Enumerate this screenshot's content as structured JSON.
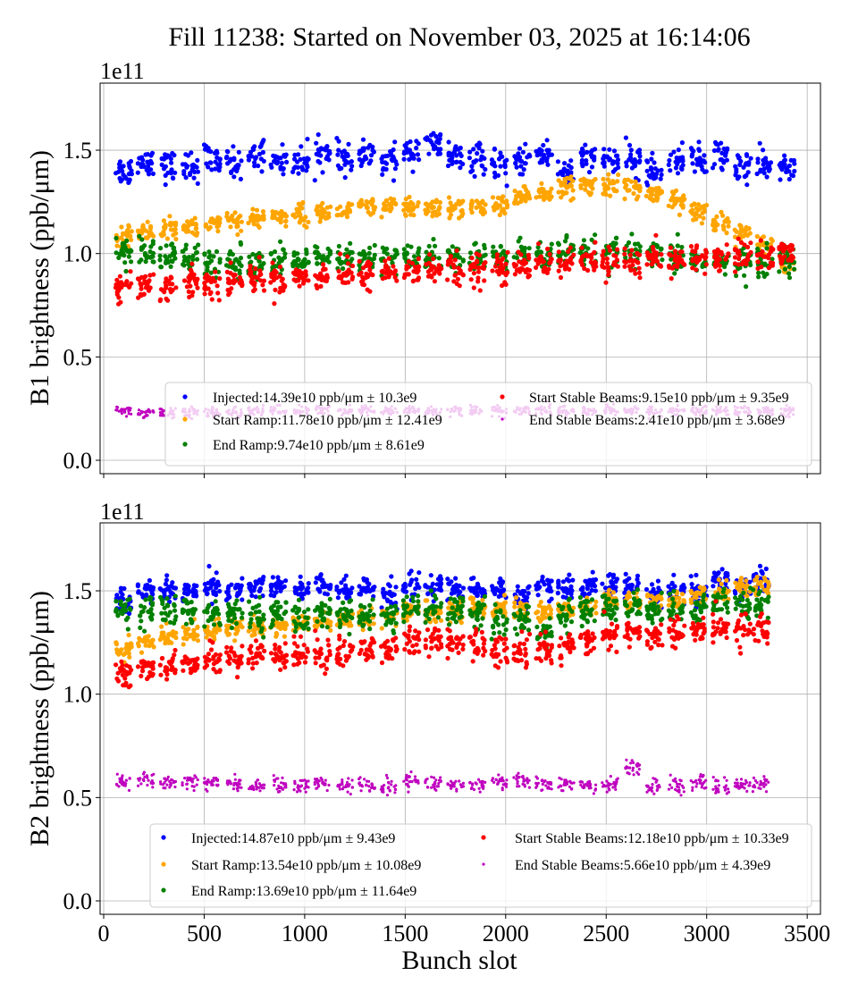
{
  "chart_data": {
    "title": "Fill 11238: Started on November 03, 2025 at 16:14:06",
    "xlabel": "Bunch slot",
    "xlim": [
      -20,
      3550
    ],
    "xticks": [
      0,
      500,
      1000,
      1500,
      2000,
      2500,
      3000,
      3500
    ],
    "grid": true,
    "panels": [
      {
        "type": "scatter",
        "ylabel": "B1 brightness (ppb/μm)",
        "offset_text": "1e11",
        "ylim": [
          -0.05,
          1.82
        ],
        "yticks": [
          "0.0",
          "0.5",
          "1.0",
          "1.5"
        ],
        "show_xticklabels": false,
        "legend_placement": "lower-right",
        "train_start_slots": [
          60,
          170,
          280,
          390,
          500,
          610,
          720,
          830,
          940,
          1050,
          1160,
          1270,
          1380,
          1490,
          1600,
          1710,
          1820,
          1930,
          2040,
          2150,
          2260,
          2370,
          2480,
          2590,
          2700,
          2810,
          2920,
          3030,
          3140,
          3250,
          3360
        ],
        "series": [
          {
            "name": "Injected:14.39e10 ppb/μm ± 10.3e9",
            "color": "#0000ff",
            "spread": 0.06,
            "y": [
              1.4,
              1.45,
              1.42,
              1.42,
              1.45,
              1.44,
              1.48,
              1.45,
              1.45,
              1.48,
              1.46,
              1.47,
              1.44,
              1.5,
              1.52,
              1.46,
              1.46,
              1.42,
              1.45,
              1.48,
              1.4,
              1.45,
              1.45,
              1.45,
              1.4,
              1.45,
              1.45,
              1.48,
              1.42,
              1.42,
              1.42
            ]
          },
          {
            "name": "Start Ramp:11.78e10 ppb/μm ± 12.41e9",
            "color": "#ffa500",
            "spread": 0.04,
            "y": [
              1.08,
              1.1,
              1.12,
              1.13,
              1.15,
              1.16,
              1.17,
              1.18,
              1.19,
              1.2,
              1.21,
              1.22,
              1.22,
              1.22,
              1.22,
              1.22,
              1.22,
              1.23,
              1.27,
              1.3,
              1.32,
              1.33,
              1.33,
              1.32,
              1.28,
              1.25,
              1.2,
              1.15,
              1.1,
              1.04,
              0.96
            ]
          },
          {
            "name": "End Ramp:9.74e10 ppb/μm ± 8.61e9",
            "color": "#008000",
            "spread": 0.06,
            "y": [
              1.02,
              1.0,
              0.98,
              0.97,
              0.96,
              0.96,
              0.96,
              0.96,
              0.96,
              0.97,
              0.97,
              0.97,
              0.98,
              0.98,
              0.98,
              0.98,
              0.98,
              0.98,
              1.0,
              1.0,
              1.0,
              1.0,
              1.0,
              1.0,
              0.98,
              0.98,
              0.97,
              0.96,
              0.96,
              0.96,
              0.97
            ]
          },
          {
            "name": "Start Stable Beams:9.15e10 ppb/μm ± 9.35e9",
            "color": "#ff0000",
            "spread": 0.06,
            "y": [
              0.85,
              0.85,
              0.84,
              0.86,
              0.87,
              0.87,
              0.88,
              0.88,
              0.89,
              0.9,
              0.9,
              0.9,
              0.91,
              0.92,
              0.92,
              0.92,
              0.93,
              0.93,
              0.95,
              0.96,
              0.96,
              0.96,
              0.96,
              0.96,
              0.96,
              0.97,
              0.98,
              0.98,
              0.99,
              0.99,
              1.0
            ]
          },
          {
            "name": "End Stable Beams:2.41e10 ppb/μm ± 3.68e9",
            "color": "#bf00bf",
            "spread": 0.02,
            "small": true,
            "y": [
              0.24,
              0.23,
              0.23,
              0.23,
              0.23,
              0.23,
              0.24,
              0.24,
              0.24,
              0.24,
              0.24,
              0.24,
              0.24,
              0.24,
              0.24,
              0.24,
              0.24,
              0.24,
              0.24,
              0.24,
              0.24,
              0.24,
              0.24,
              0.24,
              0.24,
              0.24,
              0.24,
              0.24,
              0.24,
              0.24,
              0.24
            ]
          }
        ]
      },
      {
        "type": "scatter",
        "ylabel": "B2 brightness (ppb/μm)",
        "offset_text": "1e11",
        "ylim": [
          -0.05,
          1.83
        ],
        "yticks": [
          "0.0",
          "0.5",
          "1.0",
          "1.5"
        ],
        "xticklabels": [
          "0",
          "500",
          "1000",
          "1500",
          "2000",
          "2500",
          "3000",
          "3500"
        ],
        "show_xticklabels": true,
        "legend_placement": "lower-right",
        "train_start_slots": [
          60,
          170,
          280,
          390,
          500,
          610,
          720,
          830,
          940,
          1050,
          1160,
          1270,
          1380,
          1490,
          1600,
          1710,
          1820,
          1930,
          2040,
          2150,
          2260,
          2370,
          2480,
          2590,
          2700,
          2810,
          2920,
          3030,
          3140,
          3230
        ],
        "series": [
          {
            "name": "Injected:14.87e10 ppb/μm ± 9.43e9",
            "color": "#0000ff",
            "spread": 0.05,
            "y": [
              1.45,
              1.5,
              1.5,
              1.5,
              1.52,
              1.5,
              1.52,
              1.52,
              1.5,
              1.52,
              1.5,
              1.52,
              1.48,
              1.52,
              1.52,
              1.5,
              1.5,
              1.5,
              1.48,
              1.52,
              1.5,
              1.52,
              1.52,
              1.52,
              1.48,
              1.5,
              1.5,
              1.55,
              1.52,
              1.55
            ]
          },
          {
            "name": "Start Ramp:13.54e10 ppb/μm ± 10.08e9",
            "color": "#ffa500",
            "spread": 0.04,
            "y": [
              1.22,
              1.25,
              1.28,
              1.3,
              1.3,
              1.32,
              1.33,
              1.33,
              1.34,
              1.35,
              1.36,
              1.37,
              1.38,
              1.4,
              1.4,
              1.4,
              1.42,
              1.42,
              1.4,
              1.4,
              1.4,
              1.42,
              1.45,
              1.45,
              1.44,
              1.45,
              1.48,
              1.5,
              1.52,
              1.52
            ]
          },
          {
            "name": "End Ramp:13.69e10 ppb/μm ± 11.64e9",
            "color": "#008000",
            "spread": 0.06,
            "y": [
              1.42,
              1.4,
              1.4,
              1.4,
              1.4,
              1.38,
              1.38,
              1.38,
              1.38,
              1.38,
              1.38,
              1.38,
              1.38,
              1.4,
              1.4,
              1.4,
              1.4,
              1.36,
              1.36,
              1.3,
              1.38,
              1.4,
              1.42,
              1.42,
              1.4,
              1.42,
              1.42,
              1.45,
              1.42,
              1.42
            ]
          },
          {
            "name": "Start Stable Beams:12.18e10 ppb/μm ± 10.33e9",
            "color": "#ff0000",
            "spread": 0.06,
            "y": [
              1.1,
              1.13,
              1.15,
              1.16,
              1.17,
              1.18,
              1.18,
              1.18,
              1.19,
              1.2,
              1.2,
              1.21,
              1.22,
              1.26,
              1.25,
              1.24,
              1.24,
              1.2,
              1.22,
              1.2,
              1.24,
              1.26,
              1.28,
              1.3,
              1.28,
              1.3,
              1.3,
              1.32,
              1.32,
              1.32
            ]
          },
          {
            "name": "End Stable Beams:5.66e10 ppb/μm ± 4.39e9",
            "color": "#bf00bf",
            "spread": 0.03,
            "small": true,
            "y": [
              0.57,
              0.58,
              0.57,
              0.57,
              0.57,
              0.57,
              0.56,
              0.56,
              0.56,
              0.57,
              0.56,
              0.56,
              0.55,
              0.58,
              0.57,
              0.56,
              0.57,
              0.58,
              0.58,
              0.57,
              0.56,
              0.56,
              0.56,
              0.64,
              0.56,
              0.56,
              0.57,
              0.55,
              0.56,
              0.57
            ]
          }
        ]
      }
    ]
  }
}
